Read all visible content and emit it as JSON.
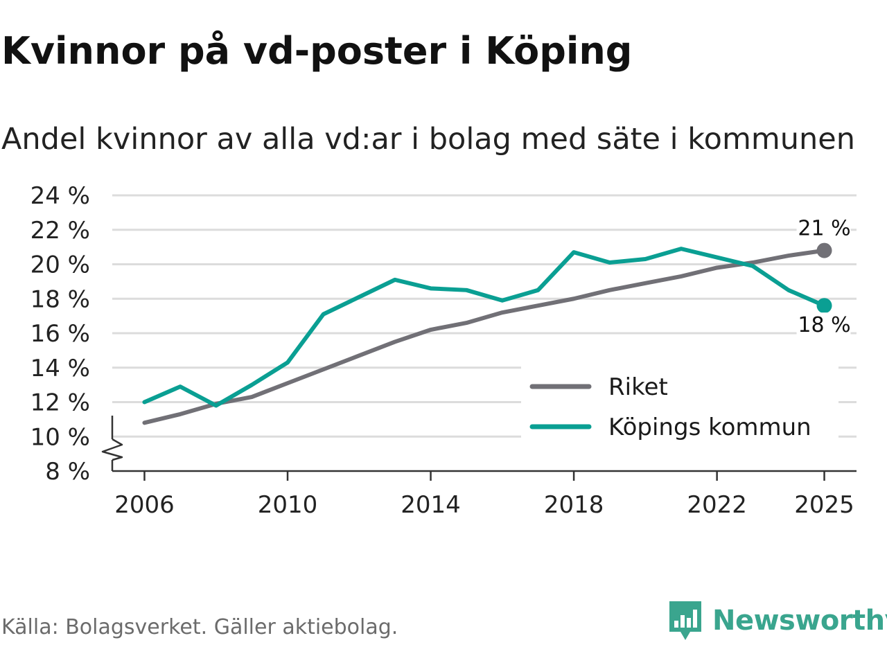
{
  "title": "Kvinnor på vd-poster i Köping",
  "subtitle": "Andel kvinnor av alla vd:ar i bolag med säte i kommunen",
  "source": "Källa: Bolagsverket. Gäller aktiebolag.",
  "brand": {
    "name": "Newsworthy",
    "icon": "newsworthy-logo-icon",
    "color": "#3aa58e"
  },
  "chart_data": {
    "type": "line",
    "title": "",
    "xlabel": "",
    "ylabel": "",
    "x": [
      2006,
      2007,
      2008,
      2009,
      2010,
      2011,
      2012,
      2013,
      2014,
      2015,
      2016,
      2017,
      2018,
      2019,
      2020,
      2021,
      2022,
      2023,
      2024,
      2025
    ],
    "xlim": [
      2005.1,
      2025.9
    ],
    "x_ticks": [
      2006,
      2010,
      2014,
      2018,
      2022,
      2025
    ],
    "x_tick_labels": [
      "2006",
      "2010",
      "2014",
      "2018",
      "2022",
      "2025"
    ],
    "ylim": [
      8,
      24
    ],
    "y_ticks": [
      8,
      10,
      12,
      14,
      16,
      18,
      20,
      22,
      24
    ],
    "y_tick_labels": [
      "8 %",
      "10 %",
      "12 %",
      "14 %",
      "16 %",
      "18 %",
      "20 %",
      "22 %",
      "24 %"
    ],
    "y_axis_break": true,
    "grid": true,
    "legend_position": "bottom-right",
    "series": [
      {
        "name": "Riket",
        "color": "#717076",
        "values": [
          10.8,
          11.3,
          11.9,
          12.3,
          13.1,
          13.9,
          14.7,
          15.5,
          16.2,
          16.6,
          17.2,
          17.6,
          18.0,
          18.5,
          18.9,
          19.3,
          19.8,
          20.1,
          20.5,
          20.8
        ],
        "end_label": "21 %",
        "end_label_position": "above"
      },
      {
        "name": "Köpings kommun",
        "color": "#0a9f93",
        "values": [
          12.0,
          12.9,
          11.8,
          13.0,
          14.3,
          17.1,
          18.1,
          19.1,
          18.6,
          18.5,
          17.9,
          18.5,
          20.7,
          20.1,
          20.3,
          20.9,
          20.4,
          19.9,
          18.5,
          17.6
        ],
        "end_label": "18 %",
        "end_label_position": "below"
      }
    ]
  }
}
